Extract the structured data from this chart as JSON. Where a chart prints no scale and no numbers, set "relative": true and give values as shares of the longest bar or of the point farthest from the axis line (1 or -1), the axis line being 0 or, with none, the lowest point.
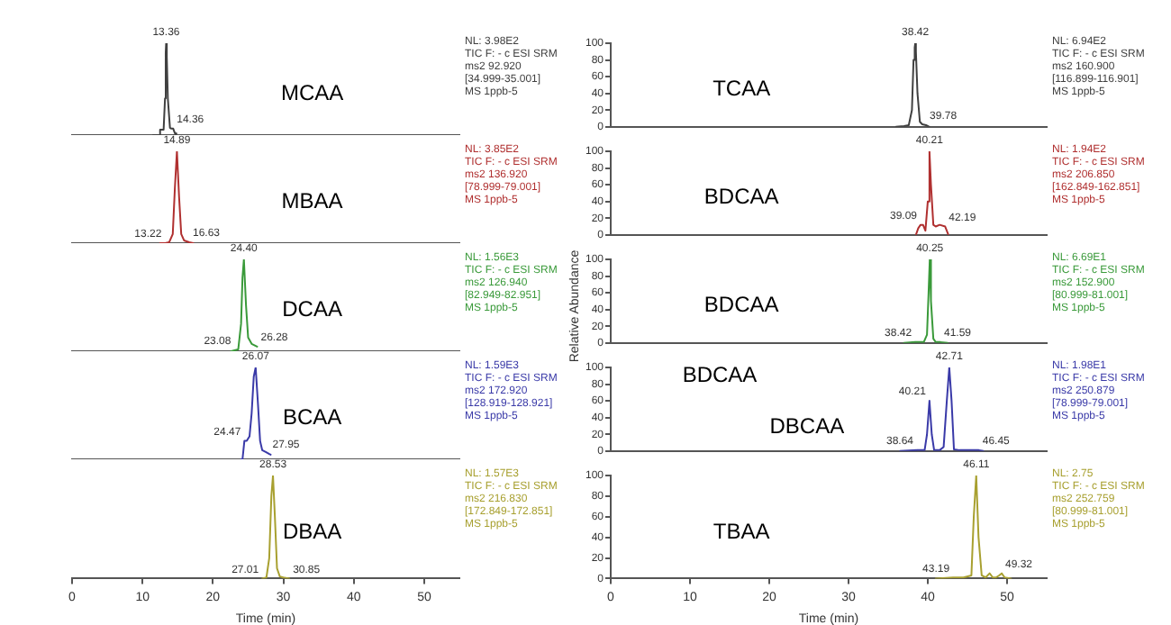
{
  "chart_data": [
    {
      "type": "line",
      "title": "MCAA",
      "relative": true,
      "xlim": [
        0,
        55
      ],
      "tick_labels": false,
      "marker": "none",
      "x": [
        11.5,
        12.3,
        12.5,
        13.0,
        13.2,
        13.3,
        13.36,
        13.45,
        13.6,
        13.9,
        14.1,
        14.36,
        14.6,
        14.8
      ],
      "series": [
        {
          "color": "#404040",
          "values": [
            0,
            0,
            0.06,
            0.06,
            0.4,
            0.9,
            1,
            0.85,
            0.4,
            0.08,
            0.07,
            0.07,
            0.02,
            0
          ]
        }
      ],
      "annotations": [
        {
          "text": "13.36",
          "x": 13.36,
          "y": 1
        },
        {
          "text": "14.36",
          "x": 14.36,
          "y": 0.07
        },
        "NL: 3.98E2",
        "TIC F: - c ESI SRM",
        "ms2 92.920",
        "[34.999-35.001]",
        "MS 1ppb-5"
      ]
    },
    {
      "type": "line",
      "title": "MBAA",
      "relative": true,
      "xlim": [
        0,
        55
      ],
      "tick_labels": false,
      "marker": "none",
      "x": [
        12.5,
        13.22,
        13.8,
        14.3,
        14.6,
        14.89,
        15.2,
        15.5,
        15.9,
        16.63,
        17.2
      ],
      "series": [
        {
          "color": "#b03030",
          "values": [
            0,
            0,
            0.01,
            0.1,
            0.6,
            1,
            0.5,
            0.1,
            0.03,
            0.01,
            0
          ]
        }
      ],
      "annotations": [
        {
          "text": "14.89",
          "x": 14.89,
          "y": 1
        },
        {
          "text": "13.22",
          "x": 13.22,
          "y": 0
        },
        {
          "text": "16.63",
          "x": 16.63,
          "y": 0.01
        },
        "NL: 3.85E2",
        "TIC F: - c ESI SRM",
        "ms2 136.920",
        "[78.999-79.001]",
        "MS 1ppb-5"
      ]
    },
    {
      "type": "line",
      "title": "DCAA",
      "relative": true,
      "xlim": [
        0,
        55
      ],
      "tick_labels": false,
      "marker": "none",
      "x": [
        22.6,
        23.08,
        23.6,
        24.0,
        24.2,
        24.4,
        24.7,
        25.0,
        25.5,
        26.28
      ],
      "series": [
        {
          "color": "#3a9a3a",
          "values": [
            0,
            0.01,
            0.02,
            0.3,
            0.8,
            1,
            0.5,
            0.15,
            0.08,
            0.05
          ]
        }
      ],
      "annotations": [
        {
          "text": "24.40",
          "x": 24.4,
          "y": 1
        },
        {
          "text": "23.08",
          "x": 23.08,
          "y": 0.01
        },
        {
          "text": "26.28",
          "x": 26.28,
          "y": 0.05
        },
        "NL: 1.56E3",
        "TIC F: - c ESI SRM",
        "ms2 126.940",
        "[82.949-82.951]",
        "MS 1ppb-5"
      ]
    },
    {
      "type": "line",
      "title": "BCAA",
      "relative": true,
      "xlim": [
        0,
        55
      ],
      "tick_labels": false,
      "marker": "none",
      "x": [
        24.0,
        24.2,
        24.47,
        24.8,
        25.2,
        25.5,
        25.8,
        26.07,
        26.4,
        26.7,
        27.0,
        27.5,
        27.95,
        28.2
      ],
      "series": [
        {
          "color": "#3a3aa8",
          "values": [
            0,
            0,
            0.2,
            0.2,
            0.25,
            0.5,
            0.9,
            1,
            0.6,
            0.2,
            0.1,
            0.08,
            0.06,
            0.05
          ]
        }
      ],
      "annotations": [
        {
          "text": "26.07",
          "x": 26.07,
          "y": 1
        },
        {
          "text": "24.47",
          "x": 24.47,
          "y": 0.2
        },
        {
          "text": "27.95",
          "x": 27.95,
          "y": 0.06
        },
        "NL: 1.59E3",
        "TIC F: - c ESI SRM",
        "ms2 172.920",
        "[128.919-128.921]",
        "MS 1ppb-5"
      ]
    },
    {
      "type": "line",
      "title": "DBAA",
      "relative": true,
      "xlim": [
        0,
        55
      ],
      "xticks": [
        0,
        10,
        20,
        30,
        40,
        50
      ],
      "xlabel": "Time (min)",
      "tick_labels": "x",
      "marker": "none",
      "x": [
        27.01,
        27.6,
        28.0,
        28.3,
        28.53,
        28.8,
        29.1,
        29.5,
        30.0,
        30.85
      ],
      "series": [
        {
          "color": "#a8a030",
          "values": [
            0,
            0.01,
            0.2,
            0.8,
            1,
            0.6,
            0.1,
            0.02,
            0.01,
            0
          ]
        }
      ],
      "annotations": [
        {
          "text": "28.53",
          "x": 28.53,
          "y": 1
        },
        {
          "text": "27.01",
          "x": 27.01,
          "y": 0
        },
        {
          "text": "30.85",
          "x": 30.85,
          "y": 0
        },
        "NL: 1.57E3",
        "TIC F: - c ESI SRM",
        "ms2 216.830",
        "[172.849-172.851]",
        "MS 1ppb-5"
      ]
    },
    {
      "type": "line",
      "title": "TCAA",
      "xlim": [
        0,
        55
      ],
      "ylim": [
        0,
        100
      ],
      "yticks": [
        0,
        20,
        40,
        60,
        80,
        100
      ],
      "tick_labels": "y",
      "marker": "none",
      "x": [
        36.0,
        37.0,
        37.6,
        38.0,
        38.2,
        38.35,
        38.42,
        38.5,
        38.7,
        39.0,
        39.3,
        39.78,
        40.2
      ],
      "series": [
        {
          "color": "#404040",
          "values": [
            0,
            1,
            2,
            20,
            80,
            95,
            100,
            90,
            40,
            6,
            3,
            2,
            0
          ]
        }
      ],
      "annotations": [
        {
          "text": "38.42",
          "x": 38.42,
          "y": 100
        },
        {
          "text": "39.78",
          "x": 39.78,
          "y": 2
        },
        "NL: 6.94E2",
        "TIC F: - c ESI SRM",
        "ms2 160.900",
        "[116.899-116.901]",
        "MS 1ppb-5"
      ]
    },
    {
      "type": "line",
      "title": "BDCAA",
      "xlim": [
        0,
        55
      ],
      "ylim": [
        0,
        100
      ],
      "yticks": [
        0,
        20,
        40,
        60,
        80,
        100
      ],
      "tick_labels": "y",
      "marker": "none",
      "x": [
        38.5,
        38.8,
        39.09,
        39.4,
        39.7,
        40.0,
        40.21,
        40.4,
        40.7,
        41.0,
        41.5,
        42.19,
        42.6
      ],
      "series": [
        {
          "color": "#b03030",
          "values": [
            0,
            8,
            12,
            12,
            5,
            40,
            100,
            60,
            12,
            10,
            12,
            10,
            0
          ]
        }
      ],
      "annotations": [
        {
          "text": "40.21",
          "x": 40.21,
          "y": 100
        },
        {
          "text": "39.09",
          "x": 39.09,
          "y": 12
        },
        {
          "text": "42.19",
          "x": 42.19,
          "y": 10
        },
        "NL: 1.94E2",
        "TIC F: - c ESI SRM",
        "ms2 206.850",
        "[162.849-162.851]",
        "MS 1ppb-5"
      ]
    },
    {
      "type": "line",
      "title": "BDCAA",
      "ylabel": "Relative Abundance",
      "xlim": [
        0,
        55
      ],
      "ylim": [
        0,
        100
      ],
      "yticks": [
        0,
        20,
        40,
        60,
        80,
        100
      ],
      "tick_labels": "y",
      "marker": "none",
      "x": [
        37.0,
        38.42,
        39.5,
        39.9,
        40.1,
        40.25,
        40.4,
        40.7,
        41.0,
        41.59,
        42.5
      ],
      "series": [
        {
          "color": "#3a9a3a",
          "values": [
            0,
            1,
            1,
            10,
            60,
            100,
            50,
            5,
            1,
            1,
            0
          ]
        }
      ],
      "annotations": [
        {
          "text": "40.25",
          "x": 40.25,
          "y": 100
        },
        {
          "text": "38.42",
          "x": 38.42,
          "y": 1
        },
        {
          "text": "41.59",
          "x": 41.59,
          "y": 1
        },
        "NL: 6.69E1",
        "TIC F: - c ESI SRM",
        "ms2 152.900",
        "[80.999-81.001]",
        "MS 1ppb-5"
      ]
    },
    {
      "type": "line",
      "title": "DBCAA",
      "subtitle": "BDCAA",
      "xlim": [
        0,
        55
      ],
      "ylim": [
        0,
        100
      ],
      "yticks": [
        0,
        20,
        40,
        60,
        80,
        100
      ],
      "tick_labels": "y",
      "marker": "none",
      "x": [
        36.5,
        38.64,
        39.6,
        39.9,
        40.21,
        40.5,
        40.8,
        41.5,
        42.0,
        42.4,
        42.71,
        43.0,
        43.3,
        44.0,
        46.45,
        47.0
      ],
      "series": [
        {
          "color": "#3a3aa8",
          "values": [
            0,
            1,
            1,
            20,
            60,
            20,
            1,
            1,
            5,
            60,
            100,
            60,
            2,
            1,
            1,
            0
          ]
        }
      ],
      "annotations": [
        {
          "text": "42.71",
          "x": 42.71,
          "y": 100
        },
        {
          "text": "40.21",
          "x": 40.21,
          "y": 60
        },
        {
          "text": "38.64",
          "x": 38.64,
          "y": 1
        },
        {
          "text": "46.45",
          "x": 46.45,
          "y": 1
        },
        "NL: 1.98E1",
        "TIC F: - c ESI SRM",
        "ms2 250.879",
        "[78.999-79.001]",
        "MS 1ppb-5"
      ]
    },
    {
      "type": "line",
      "title": "TBAA",
      "xlabel": "Time (min)",
      "xlim": [
        0,
        55
      ],
      "xticks": [
        0,
        10,
        20,
        30,
        40,
        50
      ],
      "ylim": [
        0,
        100
      ],
      "yticks": [
        0,
        20,
        40,
        60,
        80,
        100
      ],
      "marker": "none",
      "x": [
        41.0,
        43.19,
        44.5,
        45.5,
        45.8,
        46.11,
        46.4,
        46.8,
        47.3,
        47.8,
        48.2,
        48.6,
        49.0,
        49.32,
        49.7,
        50.5
      ],
      "series": [
        {
          "color": "#a8a030",
          "values": [
            0,
            1,
            1,
            3,
            60,
            100,
            40,
            3,
            1,
            5,
            1,
            1,
            3,
            5,
            1,
            0
          ]
        }
      ],
      "annotations": [
        {
          "text": "46.11",
          "x": 46.11,
          "y": 100
        },
        {
          "text": "43.19",
          "x": 43.19,
          "y": 1
        },
        {
          "text": "49.32",
          "x": 49.32,
          "y": 5
        },
        "NL: 2.75",
        "TIC F: - c ESI SRM",
        "ms2 252.759",
        "[80.999-81.001]",
        "MS 1ppb-5"
      ]
    }
  ]
}
